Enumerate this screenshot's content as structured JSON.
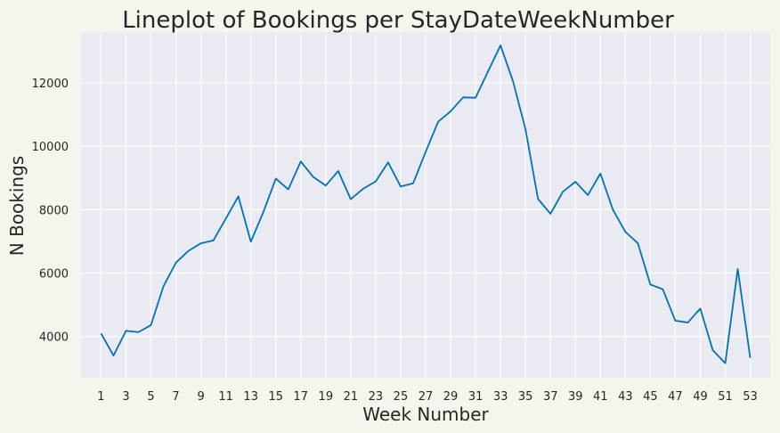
{
  "chart_data": {
    "type": "line",
    "title": "Lineplot of Bookings per StayDateWeekNumber",
    "xlabel": "Week Number",
    "ylabel": "N Bookings",
    "xlim": [
      -0.6,
      54.6
    ],
    "ylim": [
      2700,
      13600
    ],
    "xticks": [
      1,
      3,
      5,
      7,
      9,
      11,
      13,
      15,
      17,
      19,
      21,
      23,
      25,
      27,
      29,
      31,
      33,
      35,
      37,
      39,
      41,
      43,
      45,
      47,
      49,
      51,
      53
    ],
    "yticks": [
      4000,
      6000,
      8000,
      10000,
      12000
    ],
    "grid": true,
    "line_color": "#0173b2",
    "background_color": "#eaeaf2",
    "figure_color": "#f7f4ed",
    "x": [
      1,
      2,
      3,
      4,
      5,
      6,
      7,
      8,
      9,
      10,
      11,
      12,
      13,
      14,
      15,
      16,
      17,
      18,
      19,
      20,
      21,
      22,
      23,
      24,
      25,
      26,
      27,
      28,
      29,
      30,
      31,
      32,
      33,
      34,
      35,
      36,
      37,
      38,
      39,
      40,
      41,
      42,
      43,
      44,
      45,
      46,
      47,
      48,
      49,
      50,
      51,
      52,
      53
    ],
    "y": [
      4100,
      3400,
      4180,
      4140,
      4360,
      5580,
      6330,
      6700,
      6940,
      7030,
      7720,
      8420,
      6990,
      7920,
      8980,
      8640,
      9520,
      9030,
      8760,
      9220,
      8330,
      8660,
      8890,
      9490,
      8730,
      8830,
      9820,
      10770,
      11100,
      11540,
      11530,
      12360,
      13180,
      12050,
      10540,
      8340,
      7870,
      8570,
      8880,
      8460,
      9140,
      8000,
      7300,
      6940,
      5640,
      5490,
      4500,
      4440,
      4880,
      3570,
      3160,
      6130,
      3330
    ]
  }
}
